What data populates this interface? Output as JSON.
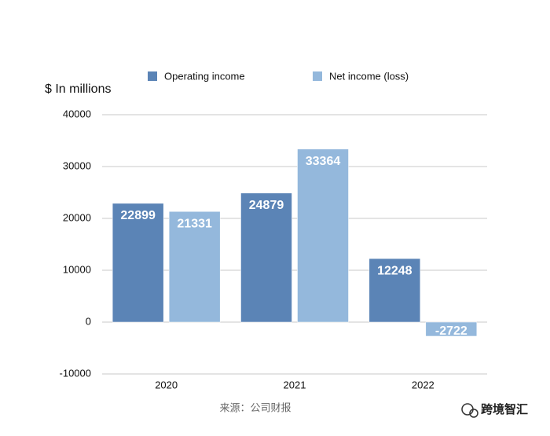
{
  "chart_data": {
    "type": "bar",
    "y_axis_label": "$ In millions",
    "categories": [
      "2020",
      "2021",
      "2022"
    ],
    "series": [
      {
        "name": "Operating income",
        "color": "#5b84b6",
        "values": [
          22899,
          24879,
          12248
        ]
      },
      {
        "name": "Net income (loss)",
        "color": "#94b8dc",
        "values": [
          21331,
          33364,
          -2722
        ]
      }
    ],
    "ylim": [
      -10000,
      40000
    ],
    "yticks": [
      -10000,
      0,
      10000,
      20000,
      30000,
      40000
    ],
    "grid": true,
    "legend": "top",
    "source": "来源：公司财报",
    "watermark": "跨境智汇"
  }
}
